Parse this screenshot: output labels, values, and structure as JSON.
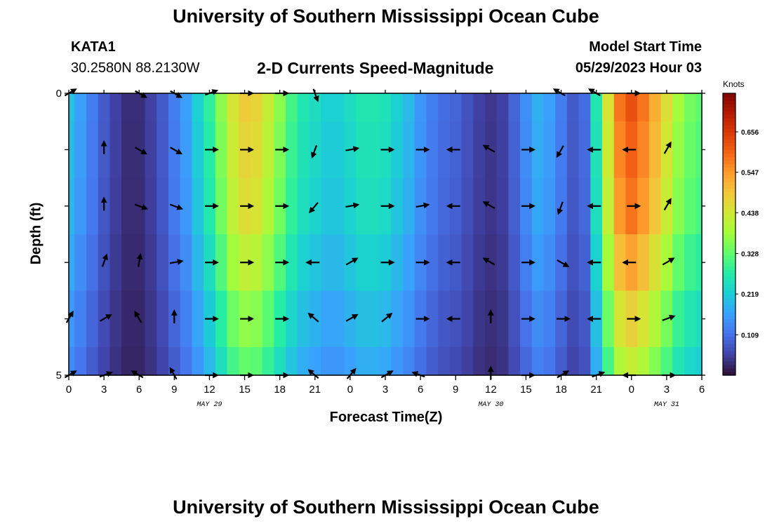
{
  "header": {
    "title": "University of Southern Mississippi Ocean Cube",
    "station": "KATA1",
    "coords": "30.2580N  88.2130W",
    "subtitle": "2-D Currents Speed-Magnitude",
    "model_start_label": "Model Start Time",
    "model_start_value": "05/29/2023 Hour 03"
  },
  "footer": {
    "title": "University of Southern Mississippi Ocean Cube"
  },
  "chart_data": {
    "type": "heatmap",
    "xlabel": "Forecast Time(Z)",
    "ylabel": "Depth (ft)",
    "x_tick_labels": [
      "0",
      "3",
      "6",
      "9",
      "12",
      "15",
      "18",
      "21",
      "0",
      "3",
      "6",
      "9",
      "12",
      "15",
      "18",
      "21",
      "0",
      "3",
      "6"
    ],
    "x_tick_hours": [
      0,
      3,
      6,
      9,
      12,
      15,
      18,
      21,
      24,
      27,
      30,
      33,
      36,
      39,
      42,
      45,
      48,
      51,
      54
    ],
    "x_range_hours": [
      0,
      54
    ],
    "date_labels": [
      {
        "text": "MAY 29",
        "hour": 12
      },
      {
        "text": "MAY 30",
        "hour": 36
      },
      {
        "text": "MAY 31",
        "hour": 51
      }
    ],
    "y_tick_labels": [
      "0",
      "5"
    ],
    "y_range_ft": [
      0,
      5
    ],
    "colorbar": {
      "unit": "Knots",
      "tick_values": [
        0.109,
        0.219,
        0.328,
        0.438,
        0.547,
        0.656
      ],
      "tick_labels": [
        "0.109",
        "0.219",
        "0.328",
        "0.438",
        "0.547",
        "0.656"
      ],
      "range": [
        0.0,
        0.76
      ],
      "colors": [
        "#30123b",
        "#4145ab",
        "#4675ed",
        "#39a2fc",
        "#1bcfd4",
        "#24eca6",
        "#61fc6c",
        "#a4fc3b",
        "#d1e834",
        "#f3c63a",
        "#fe9b2d",
        "#f36315",
        "#d93806",
        "#b11901",
        "#7a0402"
      ]
    },
    "hours": [
      0,
      1,
      2,
      3,
      4,
      5,
      6,
      7,
      8,
      9,
      10,
      11,
      12,
      13,
      14,
      15,
      16,
      17,
      18,
      19,
      20,
      21,
      22,
      23,
      24,
      25,
      26,
      27,
      28,
      29,
      30,
      31,
      32,
      33,
      34,
      35,
      36,
      37,
      38,
      39,
      40,
      41,
      42,
      43,
      44,
      45,
      46,
      47,
      48,
      49,
      50,
      51,
      52,
      53,
      54
    ],
    "depths_ft": [
      0,
      1,
      2,
      3,
      4,
      5
    ],
    "speed_profile_surface": [
      0.2,
      0.16,
      0.12,
      0.08,
      0.05,
      0.03,
      0.03,
      0.05,
      0.08,
      0.12,
      0.16,
      0.22,
      0.28,
      0.36,
      0.44,
      0.48,
      0.47,
      0.42,
      0.36,
      0.3,
      0.26,
      0.24,
      0.22,
      0.22,
      0.24,
      0.26,
      0.26,
      0.25,
      0.22,
      0.19,
      0.15,
      0.12,
      0.1,
      0.09,
      0.07,
      0.05,
      0.04,
      0.05,
      0.09,
      0.14,
      0.18,
      0.16,
      0.12,
      0.08,
      0.1,
      0.26,
      0.44,
      0.58,
      0.62,
      0.58,
      0.52,
      0.45,
      0.38,
      0.34,
      0.32
    ],
    "depth_scale": [
      1.0,
      0.97,
      0.94,
      0.86,
      0.76,
      0.68
    ],
    "arrow_hours": [
      0,
      3,
      6,
      9,
      12,
      15,
      18,
      21,
      24,
      27,
      30,
      33,
      36,
      39,
      42,
      45,
      48,
      51,
      54
    ],
    "arrows_deg": [
      [
        -30,
        null,
        30,
        30,
        -20,
        0,
        0,
        70,
        null,
        null,
        null,
        null,
        null,
        null,
        210,
        210,
        0,
        null,
        null
      ],
      [
        null,
        270,
        30,
        30,
        0,
        0,
        0,
        110,
        -10,
        0,
        0,
        180,
        210,
        0,
        120,
        180,
        180,
        -60,
        null
      ],
      [
        null,
        270,
        20,
        20,
        0,
        0,
        0,
        130,
        -10,
        0,
        -10,
        180,
        210,
        0,
        110,
        180,
        0,
        -60,
        null
      ],
      [
        null,
        -70,
        -80,
        -10,
        0,
        0,
        0,
        180,
        -30,
        0,
        0,
        180,
        210,
        0,
        30,
        180,
        180,
        -30,
        null
      ],
      [
        -60,
        -30,
        240,
        270,
        0,
        0,
        0,
        220,
        -30,
        -40,
        0,
        180,
        270,
        0,
        0,
        180,
        0,
        -20,
        null
      ],
      [
        -30,
        -20,
        210,
        240,
        0,
        0,
        0,
        220,
        -50,
        -30,
        200,
        null,
        270,
        0,
        -30,
        -20,
        180,
        0,
        null
      ]
    ]
  }
}
